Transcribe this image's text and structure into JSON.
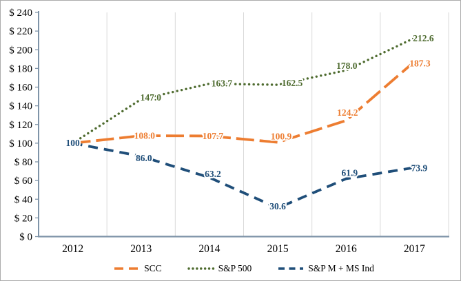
{
  "chart_data": {
    "type": "line",
    "title": "",
    "x_ticks": [
      "2012",
      "2013",
      "2014",
      "2015",
      "2016",
      "2017"
    ],
    "y_ticks": [
      "$ 0",
      "$ 20",
      "$ 40",
      "$ 60",
      "$ 80",
      "$ 100",
      "$ 120",
      "$ 140",
      "$ 160",
      "$ 180",
      "$ 200",
      "$ 220",
      "$ 240"
    ],
    "y_axis": {
      "min": 0,
      "max": 240,
      "step": 20,
      "tick_prefix": "$ "
    },
    "grid": "vertical",
    "legend_position": "bottom",
    "axis_color": "#7f94a8",
    "gridline_color": "#d9d9d9",
    "tick_label_color": "#000000",
    "series": [
      {
        "name": "SCC",
        "color": "#ED7D31",
        "style": "long-dash",
        "values": [
          100,
          108.0,
          107.7,
          100.9,
          124.2,
          187.3
        ],
        "labels": [
          "",
          "108.0",
          "107.7",
          "100.9",
          "124.2",
          "187.3"
        ]
      },
      {
        "name": "S&P 500",
        "color": "#4E6B2F",
        "style": "dot",
        "values": [
          100,
          147.0,
          163.7,
          162.5,
          178.0,
          212.6
        ],
        "labels": [
          "",
          "147.0",
          "163.7",
          "162.5",
          "178.0",
          "212.6"
        ]
      },
      {
        "name": "S&P M + MS Ind",
        "color": "#1F4E79",
        "style": "dash",
        "values": [
          100,
          86.0,
          63.2,
          30.6,
          61.9,
          73.9
        ],
        "labels": [
          "100",
          "86.0",
          "63.2",
          "30.6",
          "61.9",
          "73.9"
        ]
      }
    ]
  }
}
